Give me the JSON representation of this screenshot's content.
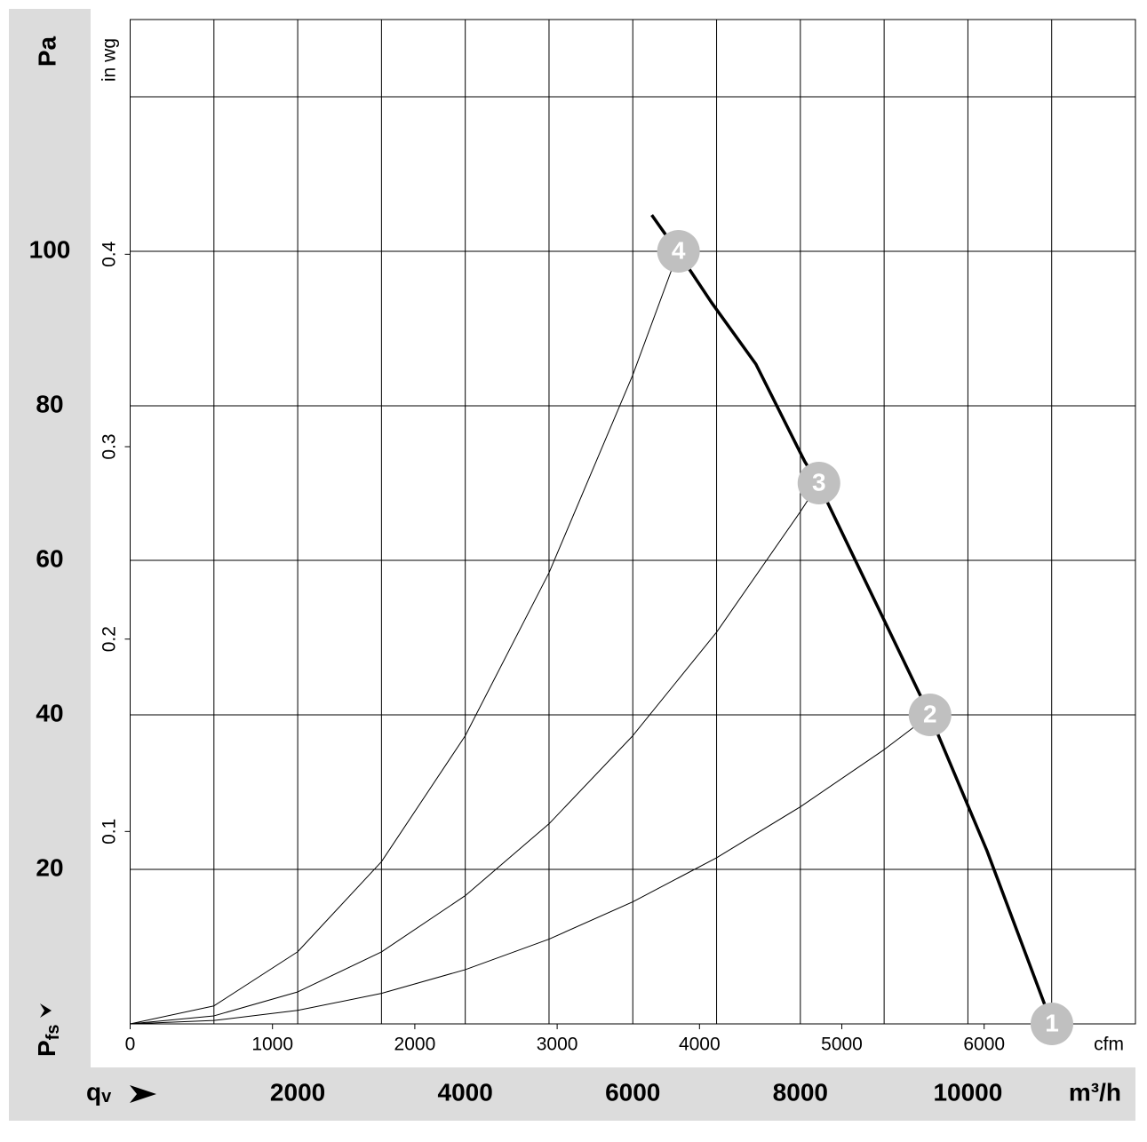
{
  "chart_data": {
    "type": "line",
    "y_label": "Pa",
    "y_symbol": "P",
    "y_symbol_sub": "fs",
    "x_symbol": "q",
    "x_symbol_sub": "v",
    "x_label": "m³/h",
    "x2_label": "cfm",
    "y2_label": "in wg",
    "xlim": [
      0,
      12000
    ],
    "xticks": [
      2000,
      4000,
      6000,
      8000,
      10000
    ],
    "xgrid": [
      1000,
      2000,
      3000,
      4000,
      5000,
      6000,
      7000,
      8000,
      9000,
      10000,
      11000
    ],
    "ylim": [
      0,
      130
    ],
    "yticks": [
      20,
      40,
      60,
      80,
      100
    ],
    "ygrid": [
      20,
      40,
      60,
      80,
      100,
      120
    ],
    "x2lim": [
      0,
      7063
    ],
    "x2ticks": [
      0,
      1000,
      2000,
      3000,
      4000,
      5000,
      6000
    ],
    "y2lim": [
      0,
      0.522
    ],
    "y2ticks": [
      0.1,
      0.2,
      0.3,
      0.4
    ],
    "series": [
      {
        "color": "#000000",
        "width": 3.5,
        "x": [
          6226,
          6545,
          6938,
          7469,
          8052,
          8222,
          9007,
          9548,
          10228,
          11003
        ],
        "values": [
          104.7,
          99.8,
          93.4,
          85.4,
          72.8,
          69.8,
          52.1,
          39.9,
          22.4,
          0
        ]
      },
      {
        "color": "#000000",
        "width": 1,
        "x": [
          0,
          1000,
          2000,
          3000,
          4000,
          5000,
          6000,
          6545
        ],
        "values": [
          0,
          2.33,
          9.34,
          21.0,
          37.3,
          58.4,
          84.0,
          100
        ]
      },
      {
        "color": "#000000",
        "width": 1,
        "x": [
          0,
          1000,
          2000,
          3000,
          4000,
          5000,
          6000,
          7000,
          8000,
          8222
        ],
        "values": [
          0,
          1.04,
          4.14,
          9.32,
          16.6,
          25.9,
          37.3,
          50.7,
          66.3,
          70
        ]
      },
      {
        "color": "#000000",
        "width": 1,
        "x": [
          0,
          1000,
          2000,
          3000,
          4000,
          5000,
          6000,
          7000,
          8000,
          9000,
          9548
        ],
        "values": [
          0,
          0.44,
          1.75,
          3.95,
          7.02,
          10.97,
          15.8,
          21.5,
          28.1,
          35.5,
          40
        ]
      }
    ],
    "points": [
      {
        "label": "1",
        "x": 11003,
        "y": 0
      },
      {
        "label": "2",
        "x": 9548,
        "y": 40
      },
      {
        "label": "3",
        "x": 8222,
        "y": 70
      },
      {
        "label": "4",
        "x": 6545,
        "y": 100
      }
    ],
    "point_color": "#c0c0c0"
  }
}
